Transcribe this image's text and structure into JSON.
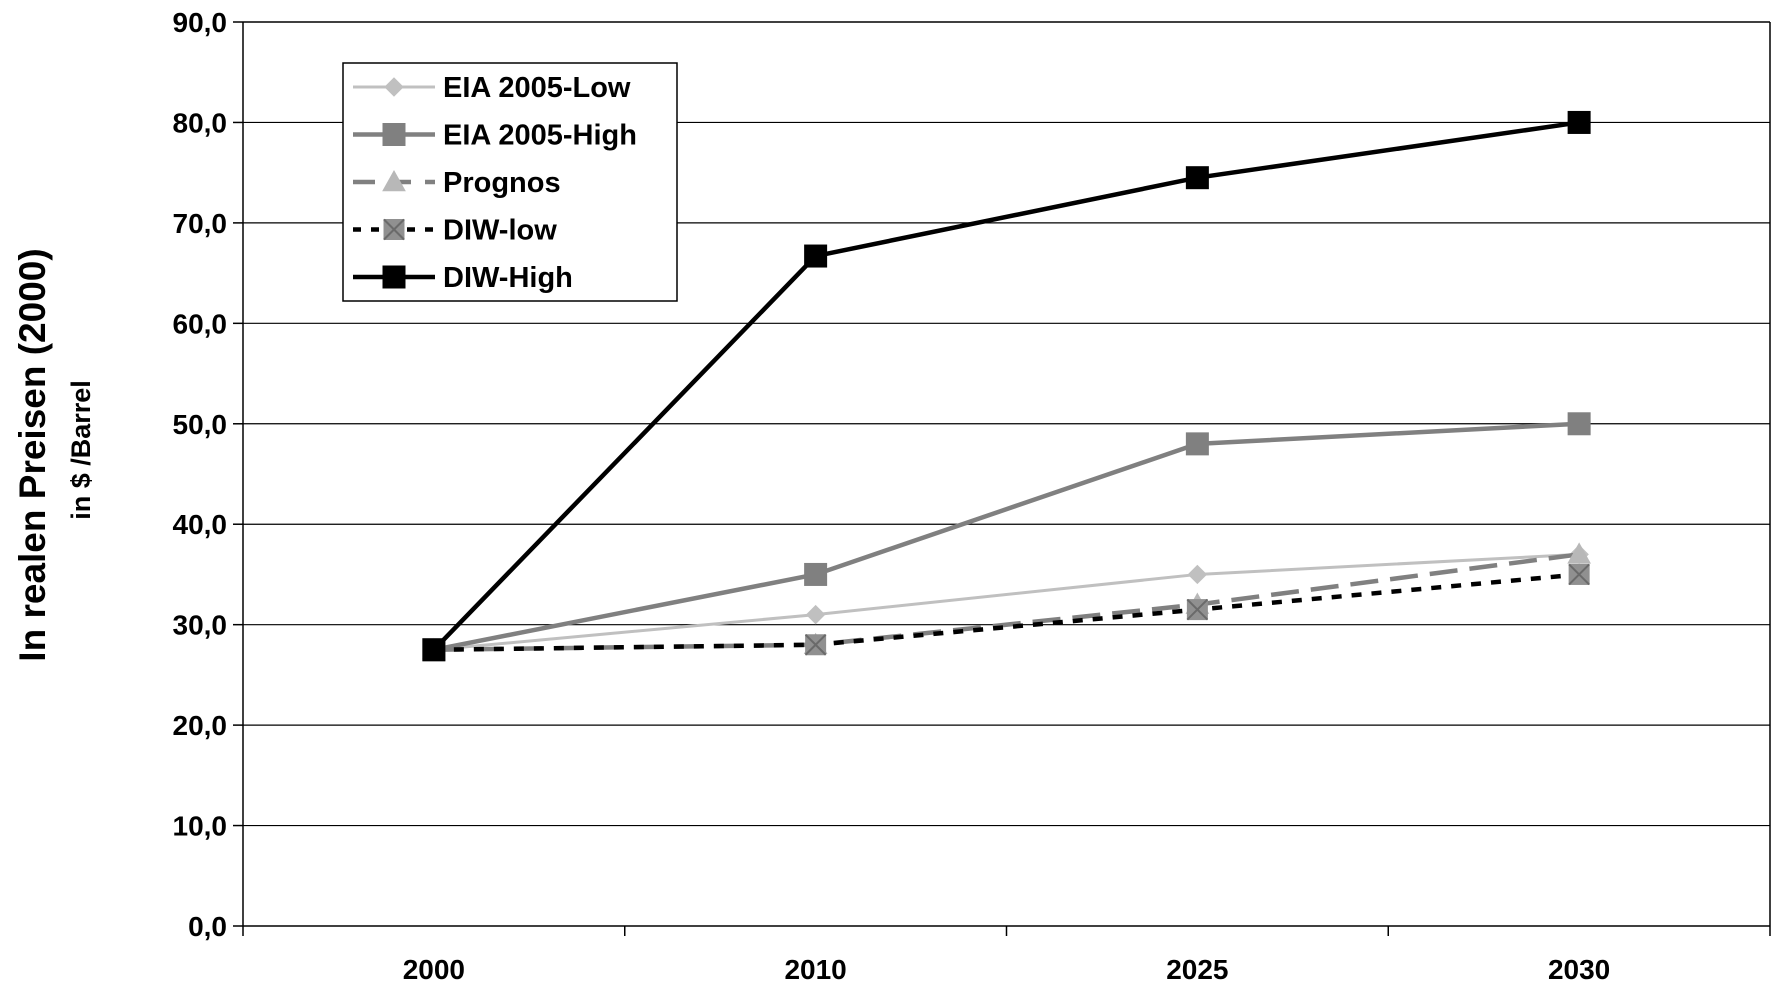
{
  "chart_data": {
    "type": "line",
    "categories": [
      "2000",
      "2010",
      "2025",
      "2030"
    ],
    "ylabel": "In realen Preisen (2000)",
    "ylabel_sub": "in $ /Barrel",
    "ylim": [
      0,
      90
    ],
    "yticks": [
      "0,0",
      "10,0",
      "20,0",
      "30,0",
      "40,0",
      "50,0",
      "60,0",
      "70,0",
      "80,0",
      "90,0"
    ],
    "grid": true,
    "legend_position": "top-left",
    "series": [
      {
        "name": "EIA 2005-Low",
        "values": [
          27.5,
          31.0,
          35.0,
          37.0
        ],
        "color": "#c0c0c0",
        "marker": "diamond",
        "dash": "solid"
      },
      {
        "name": "EIA 2005-High",
        "values": [
          27.5,
          35.0,
          48.0,
          50.0
        ],
        "color": "#808080",
        "marker": "square",
        "dash": "solid"
      },
      {
        "name": "Prognos",
        "values": [
          27.5,
          28.0,
          32.0,
          37.0
        ],
        "color": "#808080",
        "marker": "triangle",
        "dash": "dashed"
      },
      {
        "name": "DIW-low",
        "values": [
          27.5,
          28.0,
          31.5,
          35.0
        ],
        "color": "#000000",
        "marker": "square-x",
        "dash": "dotted"
      },
      {
        "name": "DIW-High",
        "values": [
          27.5,
          66.7,
          74.5,
          80.0
        ],
        "color": "#000000",
        "marker": "square",
        "dash": "solid"
      }
    ]
  }
}
